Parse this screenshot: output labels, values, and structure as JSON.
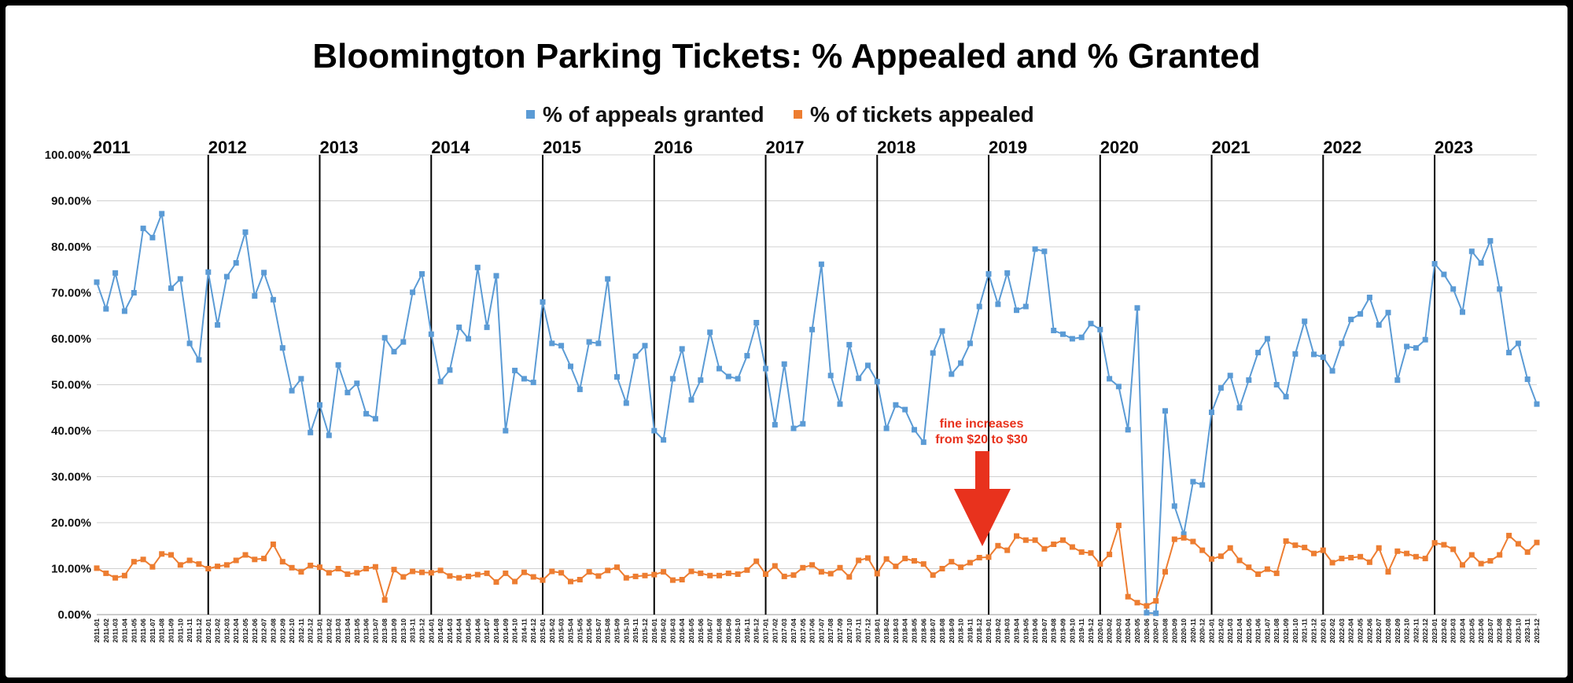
{
  "chart_data": {
    "type": "line",
    "title": "Bloomington Parking Tickets: % Appealed and % Granted",
    "ylim": [
      0,
      100
    ],
    "ytick_labels": [
      "0.00%",
      "10.00%",
      "20.00%",
      "30.00%",
      "40.00%",
      "50.00%",
      "60.00%",
      "70.00%",
      "80.00%",
      "90.00%",
      "100.00%"
    ],
    "grid": true,
    "legend_position": "top-center",
    "year_labels": [
      "2011",
      "2012",
      "2013",
      "2014",
      "2015",
      "2016",
      "2017",
      "2018",
      "2019",
      "2020",
      "2021",
      "2022",
      "2023"
    ],
    "annotation": {
      "lines": [
        "fine increases",
        "from $20 to $30"
      ],
      "at_category": "2019-01"
    },
    "colors": {
      "granted": "#5b9bd5",
      "appealed": "#ed7d31",
      "annotation": "#e8321d",
      "grid": "#d0d0d0"
    },
    "series": [
      {
        "name": "% of appeals granted",
        "values": [
          72.3,
          66.5,
          74.3,
          66,
          70,
          84,
          82,
          87.2,
          71,
          73,
          59,
          55.4,
          74.5,
          63,
          73.5,
          76.5,
          83.2,
          69.3,
          74.4,
          68.5,
          58,
          48.7,
          51.3,
          39.6,
          45.6,
          39,
          54.3,
          48.3,
          50.3,
          43.7,
          42.6,
          60.2,
          57.2,
          59.3,
          70.1,
          74.1,
          61,
          50.7,
          53.2,
          62.5,
          60,
          75.5,
          62.5,
          73.7,
          40,
          53.1,
          51.3,
          50.5,
          68,
          59,
          58.5,
          54,
          49,
          59.3,
          59,
          73,
          51.7,
          46,
          56.2,
          58.5,
          40,
          38,
          51.3,
          57.8,
          46.7,
          51,
          61.4,
          53.5,
          51.8,
          51.3,
          56.3,
          63.5,
          53.5,
          41.3,
          54.5,
          40.5,
          41.5,
          62,
          76.2,
          52,
          45.8,
          58.7,
          51.4,
          54.2,
          50.7,
          40.5,
          45.6,
          44.6,
          40.2,
          37.5,
          56.9,
          61.7,
          52.3,
          54.7,
          59,
          67,
          74.1,
          67.5,
          74.3,
          66.2,
          67,
          79.5,
          79,
          61.8,
          61,
          60,
          60.3,
          63.3,
          62,
          51.3,
          49.6,
          40.2,
          66.7,
          0.4,
          0.3,
          44.3,
          23.6,
          17.5,
          28.9,
          28.2,
          44,
          49.3,
          52,
          45,
          51,
          57,
          60,
          50,
          47.4,
          56.7,
          63.8,
          56.6,
          56,
          53,
          59,
          64.2,
          65.4,
          69,
          63,
          65.7,
          51,
          58.3,
          58,
          59.8,
          76.3,
          74,
          70.8,
          65.8,
          79,
          76.5,
          81.3,
          70.8,
          57,
          59,
          51.2,
          45.8
        ]
      },
      {
        "name": "% of tickets appealed",
        "values": [
          10.1,
          9,
          8,
          8.5,
          11.5,
          12,
          10.4,
          13.2,
          13,
          10.8,
          11.8,
          11,
          10,
          10.5,
          10.8,
          11.8,
          13,
          12,
          12.2,
          15.3,
          11.5,
          10.2,
          9.3,
          10.7,
          10.3,
          9.1,
          10,
          8.8,
          9.1,
          10,
          10.4,
          3.2,
          9.8,
          8.2,
          9.4,
          9.2,
          9.1,
          9.6,
          8.4,
          8,
          8.3,
          8.7,
          9,
          7.1,
          9,
          7.2,
          9.2,
          8.2,
          7.5,
          9.4,
          9.1,
          7.2,
          7.6,
          9.3,
          8.4,
          9.6,
          10.3,
          8,
          8.3,
          8.5,
          8.7,
          9.3,
          7.5,
          7.6,
          9.4,
          9,
          8.5,
          8.5,
          9,
          8.8,
          9.7,
          11.6,
          8.8,
          10.6,
          8.3,
          8.6,
          10.2,
          10.8,
          9.3,
          8.9,
          10.2,
          8.2,
          11.8,
          12.3,
          8.9,
          12.1,
          10.5,
          12.2,
          11.7,
          11,
          8.6,
          10,
          11.5,
          10.3,
          11.3,
          12.4,
          12.5,
          15,
          14,
          17.1,
          16.2,
          16.2,
          14.3,
          15.3,
          16.2,
          14.7,
          13.6,
          13.4,
          11,
          13.1,
          19.4,
          3.9,
          2.6,
          1.9,
          3,
          9.3,
          16.4,
          16.7,
          15.9,
          14,
          12.1,
          12.7,
          14.5,
          11.8,
          10.3,
          8.8,
          9.9,
          9,
          16,
          15.1,
          14.6,
          13.3,
          14,
          11.3,
          12.2,
          12.4,
          12.6,
          11.4,
          14.5,
          9.3,
          13.8,
          13.3,
          12.6,
          12.2,
          15.6,
          15.2,
          14.2,
          10.8,
          13,
          11.1,
          11.7,
          13,
          17.2,
          15.4,
          13.6,
          15.7
        ]
      }
    ],
    "categories": [
      "2011-01",
      "2011-02",
      "2011-03",
      "2011-04",
      "2011-05",
      "2011-06",
      "2011-07",
      "2011-08",
      "2011-09",
      "2011-10",
      "2011-11",
      "2011-12",
      "2012-01",
      "2012-02",
      "2012-03",
      "2012-04",
      "2012-05",
      "2012-06",
      "2012-07",
      "2012-08",
      "2012-09",
      "2012-10",
      "2012-11",
      "2012-12",
      "2013-01",
      "2013-02",
      "2013-03",
      "2013-04",
      "2013-05",
      "2013-06",
      "2013-07",
      "2013-08",
      "2013-09",
      "2013-10",
      "2013-11",
      "2013-12",
      "2014-01",
      "2014-02",
      "2014-03",
      "2014-04",
      "2014-05",
      "2014-06",
      "2014-07",
      "2014-08",
      "2014-09",
      "2014-10",
      "2014-11",
      "2014-12",
      "2015-01",
      "2015-02",
      "2015-03",
      "2015-04",
      "2015-05",
      "2015-06",
      "2015-07",
      "2015-08",
      "2015-09",
      "2015-10",
      "2015-11",
      "2015-12",
      "2016-01",
      "2016-02",
      "2016-03",
      "2016-04",
      "2016-05",
      "2016-06",
      "2016-07",
      "2016-08",
      "2016-09",
      "2016-10",
      "2016-11",
      "2016-12",
      "2017-01",
      "2017-02",
      "2017-03",
      "2017-04",
      "2017-05",
      "2017-06",
      "2017-07",
      "2017-08",
      "2017-09",
      "2017-10",
      "2017-11",
      "2017-12",
      "2018-01",
      "2018-02",
      "2018-03",
      "2018-04",
      "2018-05",
      "2018-06",
      "2018-07",
      "2018-08",
      "2018-09",
      "2018-10",
      "2018-11",
      "2018-12",
      "2019-01",
      "2019-02",
      "2019-03",
      "2019-04",
      "2019-05",
      "2019-06",
      "2019-07",
      "2019-08",
      "2019-09",
      "2019-10",
      "2019-11",
      "2019-12",
      "2020-01",
      "2020-02",
      "2020-03",
      "2020-04",
      "2020-05",
      "2020-06",
      "2020-07",
      "2020-08",
      "2020-09",
      "2020-10",
      "2020-11",
      "2020-12",
      "2021-01",
      "2021-02",
      "2021-03",
      "2021-04",
      "2021-05",
      "2021-06",
      "2021-07",
      "2021-08",
      "2021-09",
      "2021-10",
      "2021-11",
      "2021-12",
      "2022-01",
      "2022-02",
      "2022-03",
      "2022-04",
      "2022-05",
      "2022-06",
      "2022-07",
      "2022-08",
      "2022-09",
      "2022-10",
      "2022-11",
      "2022-12",
      "2023-01",
      "2023-02",
      "2023-03",
      "2023-04",
      "2023-05",
      "2023-06",
      "2023-07",
      "2023-08",
      "2023-09",
      "2023-10",
      "2023-11",
      "2023-12"
    ]
  }
}
